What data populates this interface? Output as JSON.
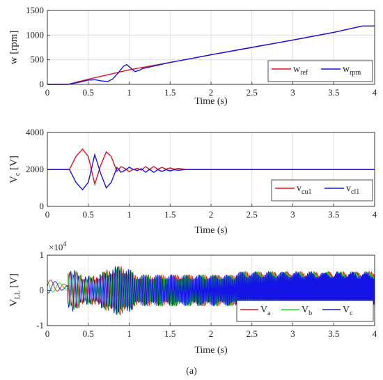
{
  "caption": "(a)",
  "chart_data": [
    {
      "type": "line",
      "ylabel": "w [rpm]",
      "xlabel": "Time (s)",
      "xlim": [
        0,
        4
      ],
      "ylim": [
        0,
        1500
      ],
      "xticks": [
        "0",
        "0.5",
        "1",
        "1.5",
        "2",
        "2.5",
        "3",
        "3.5",
        "4"
      ],
      "yticks": [
        "0",
        "500",
        "1000",
        "1500"
      ],
      "grid": true,
      "legend_position": "bottom-right",
      "series": [
        {
          "name": "w",
          "sub": "ref",
          "color": "#e8101a",
          "x": [
            0,
            0.25,
            0.5,
            0.75,
            1.0,
            1.5,
            2.0,
            2.5,
            3.0,
            3.5,
            3.85,
            4.0
          ],
          "y": [
            0,
            0,
            105,
            200,
            295,
            445,
            600,
            750,
            900,
            1055,
            1185,
            1185
          ]
        },
        {
          "name": "w",
          "sub": "rpm",
          "color": "#1414e6",
          "x": [
            0,
            0.25,
            0.38,
            0.5,
            0.58,
            0.66,
            0.74,
            0.8,
            0.87,
            0.93,
            0.97,
            1.02,
            1.07,
            1.12,
            1.16,
            1.5,
            2.0,
            2.5,
            3.0,
            3.5,
            3.85,
            4.0
          ],
          "y": [
            0,
            0,
            40,
            85,
            95,
            70,
            60,
            110,
            240,
            370,
            400,
            330,
            260,
            280,
            320,
            445,
            600,
            750,
            900,
            1055,
            1185,
            1185
          ]
        }
      ]
    },
    {
      "type": "line",
      "ylabel": "V",
      "ylabel_sub": "c",
      "ylabel_unit": " [V]",
      "xlabel": "Time (s)",
      "xlim": [
        0,
        4
      ],
      "ylim": [
        0,
        4000
      ],
      "xticks": [
        "0",
        "0.5",
        "1",
        "1.5",
        "2",
        "2.5",
        "3",
        "3.5",
        "4"
      ],
      "yticks": [
        "0",
        "2000",
        "4000"
      ],
      "grid": true,
      "legend_position": "bottom-right",
      "series": [
        {
          "name": "v",
          "sub": "cu1",
          "color": "#e8101a",
          "x": [
            0,
            0.27,
            0.35,
            0.43,
            0.5,
            0.58,
            0.65,
            0.72,
            0.78,
            0.85,
            0.9,
            0.95,
            1.0,
            1.05,
            1.1,
            1.15,
            1.2,
            1.25,
            1.3,
            1.35,
            1.4,
            1.45,
            1.5,
            1.55,
            1.6,
            1.7,
            4.0
          ],
          "y": [
            2000,
            2000,
            2700,
            3100,
            2700,
            1200,
            2200,
            2950,
            2700,
            1900,
            2150,
            2050,
            1880,
            2000,
            2060,
            1960,
            2150,
            2000,
            2160,
            2010,
            2110,
            2020,
            2080,
            2020,
            2050,
            2000,
            2000
          ]
        },
        {
          "name": "v",
          "sub": "cl1",
          "color": "#1414e6",
          "x": [
            0,
            0.27,
            0.35,
            0.43,
            0.5,
            0.58,
            0.65,
            0.72,
            0.78,
            0.85,
            0.9,
            0.95,
            1.0,
            1.05,
            1.1,
            1.15,
            1.2,
            1.25,
            1.3,
            1.35,
            1.4,
            1.45,
            1.5,
            1.55,
            1.6,
            1.7,
            4.0
          ],
          "y": [
            2000,
            2000,
            1300,
            900,
            1300,
            2800,
            1800,
            1000,
            1300,
            2100,
            1850,
            1950,
            2120,
            2000,
            1940,
            2040,
            1850,
            2000,
            1840,
            1990,
            1890,
            1980,
            1920,
            1980,
            1950,
            2000,
            2000
          ]
        }
      ]
    },
    {
      "type": "line",
      "ylabel": "V",
      "ylabel_sub": "LL",
      "ylabel_unit": " [V]",
      "xlabel": "Time (s)",
      "xlim": [
        0,
        4
      ],
      "ylim": [
        -1,
        1
      ],
      "xticks": [
        "0",
        "0.5",
        "1",
        "1.5",
        "2",
        "2.5",
        "3",
        "3.5",
        "4"
      ],
      "yticks": [
        "-1",
        "0",
        "1"
      ],
      "exponent": "×10",
      "exponent_power": "4",
      "grid": true,
      "legend_position": "bottom-right",
      "series": [
        {
          "name": "V",
          "sub": "a",
          "color": "#e8101a"
        },
        {
          "name": "V",
          "sub": "b",
          "color": "#18e018"
        },
        {
          "name": "V",
          "sub": "c",
          "color": "#1414e6"
        }
      ]
    }
  ]
}
